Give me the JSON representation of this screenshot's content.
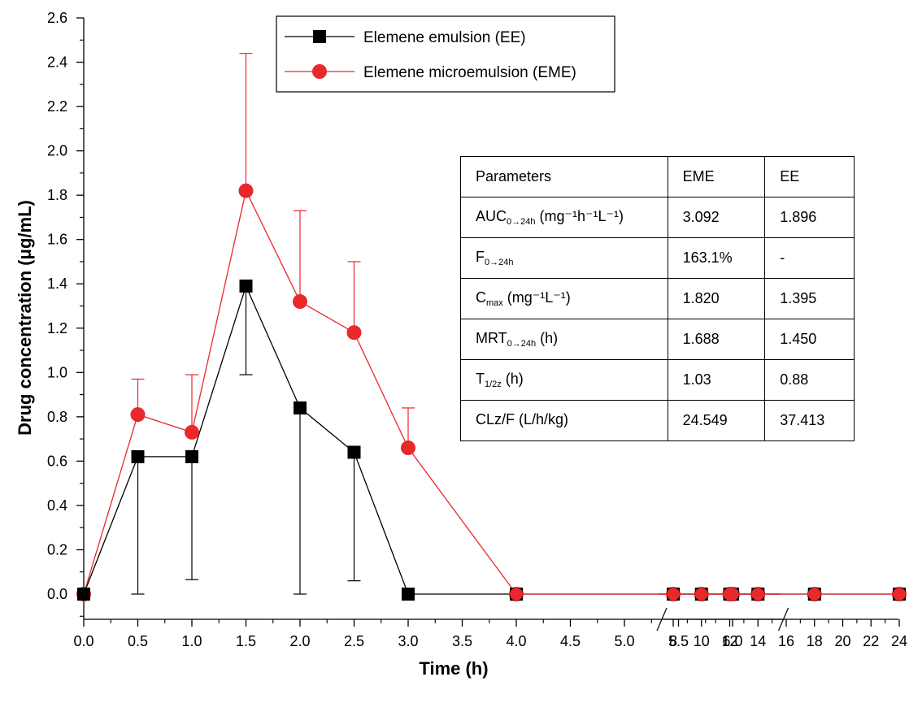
{
  "chart_data": {
    "type": "line",
    "xlabel": "Time (h)",
    "ylabel": "Drug concentration (μg/mL)",
    "ylim": [
      0,
      2.6
    ],
    "y_ticks": [
      "0.0",
      "0.2",
      "0.4",
      "0.6",
      "0.8",
      "1.0",
      "1.2",
      "1.4",
      "1.6",
      "1.8",
      "2.0",
      "2.2",
      "2.4",
      "2.6"
    ],
    "x_ticks_left": [
      "0.0",
      "0.5",
      "1.0",
      "1.5",
      "2.0",
      "2.5",
      "3.0",
      "3.5",
      "4.0",
      "4.5",
      "5.0",
      "5.5",
      "6.0"
    ],
    "x_ticks_right": [
      "8",
      "10",
      "12",
      "14",
      "16",
      "18",
      "20",
      "22",
      "24"
    ],
    "axis_break": "between 6 and 8 h",
    "legend_position": "top-center",
    "series": [
      {
        "name": "Elemene emulsion (EE)",
        "color": "#000000",
        "marker": "square",
        "x": [
          0,
          0.5,
          1.0,
          1.5,
          2.0,
          2.5,
          3.0,
          4.0,
          6.0,
          8,
          10,
          12,
          14,
          18,
          24
        ],
        "y": [
          0,
          0.62,
          0.62,
          1.39,
          0.84,
          0.64,
          0.0,
          0.0,
          0.0,
          0.0,
          0.0,
          0.0,
          0.0,
          0.0,
          0.0
        ],
        "error_lower": [
          0,
          0.62,
          0.555,
          0.4,
          0.84,
          0.58,
          0,
          0,
          0,
          0,
          0,
          0,
          0,
          0,
          0
        ]
      },
      {
        "name": "Elemene microemulsion (EME)",
        "color": "#e8282b",
        "marker": "circle",
        "x": [
          0,
          0.5,
          1.0,
          1.5,
          2.0,
          2.5,
          3.0,
          4.0,
          6.0,
          8,
          10,
          12,
          14,
          18,
          24
        ],
        "y": [
          0,
          0.81,
          0.73,
          1.82,
          1.32,
          1.18,
          0.66,
          0.0,
          0.0,
          0.0,
          0.0,
          0.0,
          0.0,
          0.0,
          0.0
        ],
        "error_upper": [
          0,
          0.16,
          0.26,
          0.62,
          0.41,
          0.32,
          0.18,
          0,
          0,
          0,
          0,
          0,
          0,
          0,
          0
        ]
      }
    ]
  },
  "table": {
    "header": {
      "param": "Parameters",
      "eme": "EME",
      "ee": "EE"
    },
    "rows": [
      {
        "main": "AUC",
        "sub": "0→24h",
        "tail": " (mg⁻¹h⁻¹L⁻¹)",
        "eme": "3.092",
        "ee": "1.896"
      },
      {
        "main": "F",
        "sub": "0→24h",
        "tail": "",
        "eme": "163.1%",
        "ee": "-"
      },
      {
        "main": "C",
        "sub": "max",
        "tail": " (mg⁻¹L⁻¹)",
        "eme": "1.820",
        "ee": "1.395"
      },
      {
        "main": "MRT",
        "sub": "0→24h",
        "tail": " (h)",
        "eme": "1.688",
        "ee": "1.450"
      },
      {
        "main": "T",
        "sub": "1/2z",
        "tail": " (h)",
        "eme": "1.03",
        "ee": "0.88"
      },
      {
        "main": "CLz/F (L/h/kg)",
        "sub": "",
        "tail": "",
        "eme": "24.549",
        "ee": "37.413"
      }
    ]
  }
}
